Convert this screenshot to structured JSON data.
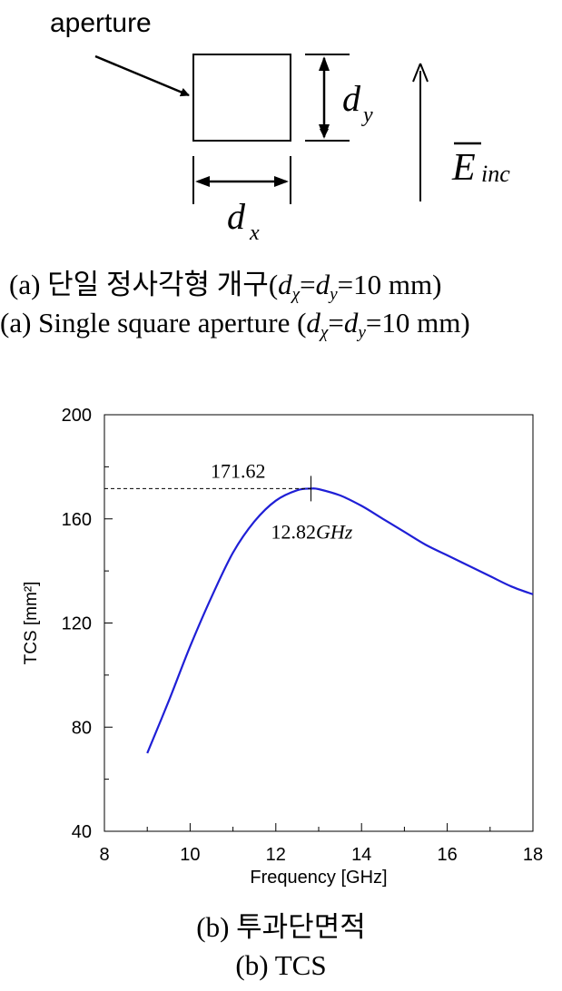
{
  "diagram": {
    "aperture_label": "aperture",
    "dy_label": "d",
    "dy_sub": "y",
    "dx_label": "d",
    "dx_sub": "x",
    "field_label": "E",
    "field_sub": "inc"
  },
  "caption_a_ko": {
    "prefix": "(a)  단일 정사각형 개구(",
    "d1": "d",
    "d1_sub": "χ",
    "eq1": "=",
    "d2": "d",
    "d2_sub": "y",
    "suffix": "=10  mm)"
  },
  "caption_a_en": {
    "prefix": "(a)  Single  square  aperture  (",
    "d1": "d",
    "d1_sub": "χ",
    "eq1": "=",
    "d2": "d",
    "d2_sub": "y",
    "suffix": "=10  mm)"
  },
  "chart_data": {
    "type": "line",
    "xlabel": "Frequency [GHz]",
    "ylabel": "TCS [mm²]",
    "xlim": [
      8,
      18
    ],
    "ylim": [
      40,
      200
    ],
    "x_ticks": [
      "8",
      "10",
      "12",
      "14",
      "16",
      "18"
    ],
    "y_ticks": [
      "40",
      "80",
      "120",
      "160",
      "200"
    ],
    "grid": false,
    "line_color": "#1f1fd6",
    "series": [
      {
        "x": [
          9.0,
          9.5,
          10.0,
          10.5,
          11.0,
          11.5,
          12.0,
          12.5,
          12.82,
          13.0,
          13.5,
          14.0,
          14.5,
          15.0,
          15.5,
          16.0,
          16.5,
          17.0,
          17.5,
          18.0
        ],
        "y": [
          70,
          90,
          111,
          130,
          147,
          159,
          167,
          171,
          171.62,
          171.4,
          169,
          165,
          160,
          155,
          150,
          146,
          142,
          138,
          134,
          131
        ]
      }
    ],
    "annotations": {
      "peak_value": "171.62",
      "peak_freq_num": "12.82",
      "peak_freq_unit": "GHz",
      "peak_x": 12.82,
      "peak_y": 171.62
    }
  },
  "caption_b_ko": "(b)  투과단면적",
  "caption_b_en": "(b)  TCS"
}
